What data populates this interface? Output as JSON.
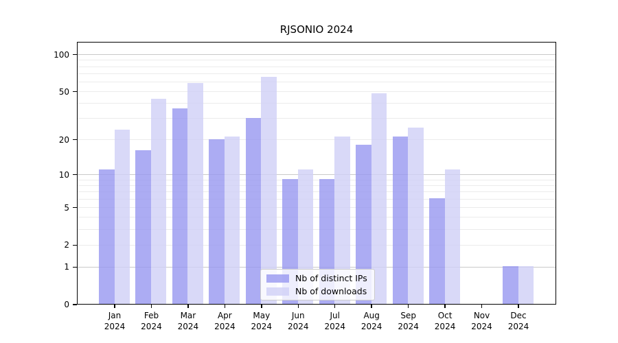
{
  "chart_data": {
    "type": "bar",
    "title": "RJSONIO 2024",
    "categories": [
      "Jan",
      "Feb",
      "Mar",
      "Apr",
      "May",
      "Jun",
      "Jul",
      "Aug",
      "Sep",
      "Oct",
      "Nov",
      "Dec"
    ],
    "x_tick_year": [
      "2024",
      "2024",
      "2024",
      "2024",
      "2024",
      "2024",
      "2024",
      "2024",
      "2024",
      "2024",
      "2024",
      "2024"
    ],
    "series": [
      {
        "name": "Nb of distinct IPs",
        "color": "#9797f0",
        "values": [
          11,
          16,
          36,
          20,
          30,
          9,
          9,
          18,
          21,
          6,
          0,
          1
        ]
      },
      {
        "name": "Nb of downloads",
        "color": "#d0d0f6",
        "values": [
          24,
          43,
          58,
          21,
          65,
          11,
          21,
          48,
          25,
          11,
          0,
          1
        ]
      }
    ],
    "xlabel": "",
    "ylabel": "",
    "yscale": "log1p",
    "ylim": [
      0,
      127
    ],
    "yticks": [
      0,
      1,
      2,
      5,
      10,
      20,
      50,
      100
    ],
    "major_gridlines": [
      1,
      10,
      100
    ],
    "minor_gridlines": [
      2,
      3,
      4,
      5,
      6,
      7,
      8,
      9,
      20,
      30,
      40,
      50,
      60,
      70,
      80,
      90
    ],
    "grid": true,
    "legend_position": "lower center"
  },
  "colors": {
    "bar_opacity": "0.8",
    "distinct_ips_visible": "#a9a9f3",
    "downloads_visible": "#d9d9f8",
    "major_grid": "#c9c9c9",
    "minor_grid": "#ebebeb",
    "axis": "#000000",
    "legend_border": "#cccccc",
    "background": "#ffffff"
  }
}
